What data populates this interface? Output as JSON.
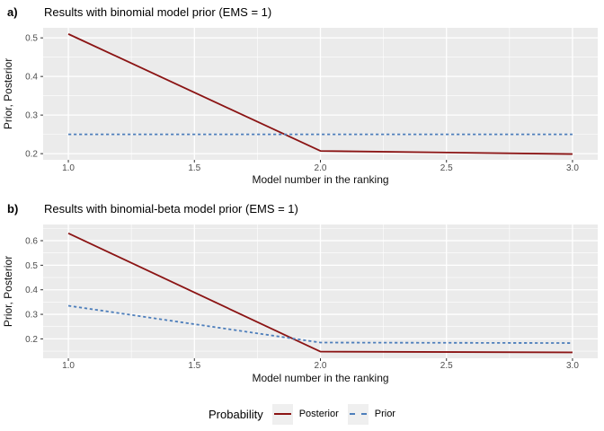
{
  "figure": {
    "background": "#FFFFFF",
    "panel_background": "#EBEBEB",
    "gridline_color": "#FFFFFF",
    "tick_color": "#333333",
    "tick_label_color": "#4D4D4D"
  },
  "legend": {
    "title": "Probability",
    "position": "bottom-center",
    "items": [
      {
        "label": "Posterior",
        "color": "#8B1414",
        "dash": "solid"
      },
      {
        "label": "Prior",
        "color": "#4D7EBB",
        "dash": "dashed"
      }
    ]
  },
  "chart_data": [
    {
      "type": "line",
      "panel_tag": "a)",
      "title": "Results with binomial model prior (EMS = 1)",
      "xlabel": "Model number in the ranking",
      "ylabel": "Prior, Posterior",
      "xlim": [
        0.9,
        3.1
      ],
      "ylim": [
        0.184,
        0.526
      ],
      "xticks": [
        1.0,
        1.5,
        2.0,
        2.5,
        3.0
      ],
      "xtick_labels": [
        "1.0",
        "1.5",
        "2.0",
        "2.5",
        "3.0"
      ],
      "yticks": [
        0.2,
        0.3,
        0.4,
        0.5
      ],
      "ytick_labels": [
        "0.2",
        "0.3",
        "0.4",
        "0.5"
      ],
      "x_minor": [
        1.25,
        1.75,
        2.25,
        2.75
      ],
      "y_minor": [
        0.25,
        0.35,
        0.45
      ],
      "grid": true,
      "legend_position": "none",
      "series": [
        {
          "name": "Posterior",
          "color": "#8B1414",
          "dash": "solid",
          "x": [
            1,
            2,
            3
          ],
          "y": [
            0.51,
            0.207,
            0.199
          ]
        },
        {
          "name": "Prior",
          "color": "#4D7EBB",
          "dash": "dashed",
          "x": [
            1,
            2,
            3
          ],
          "y": [
            0.25,
            0.25,
            0.25
          ]
        }
      ]
    },
    {
      "type": "line",
      "panel_tag": "b)",
      "title": "Results with binomial-beta model prior (EMS = 1)",
      "xlabel": "Model number in the ranking",
      "ylabel": "Prior, Posterior",
      "xlim": [
        0.9,
        3.1
      ],
      "ylim": [
        0.121,
        0.666
      ],
      "xticks": [
        1.0,
        1.5,
        2.0,
        2.5,
        3.0
      ],
      "xtick_labels": [
        "1.0",
        "1.5",
        "2.0",
        "2.5",
        "3.0"
      ],
      "yticks": [
        0.2,
        0.3,
        0.4,
        0.5,
        0.6
      ],
      "ytick_labels": [
        "0.2",
        "0.3",
        "0.4",
        "0.5",
        "0.6"
      ],
      "x_minor": [
        1.25,
        1.75,
        2.25,
        2.75
      ],
      "y_minor": [
        0.15,
        0.25,
        0.35,
        0.45,
        0.55,
        0.65
      ],
      "grid": true,
      "legend_position": "none",
      "series": [
        {
          "name": "Posterior",
          "color": "#8B1414",
          "dash": "solid",
          "x": [
            1,
            2,
            3
          ],
          "y": [
            0.63,
            0.148,
            0.145
          ]
        },
        {
          "name": "Prior",
          "color": "#4D7EBB",
          "dash": "dashed",
          "x": [
            1,
            2,
            3
          ],
          "y": [
            0.335,
            0.185,
            0.183
          ]
        }
      ]
    }
  ]
}
